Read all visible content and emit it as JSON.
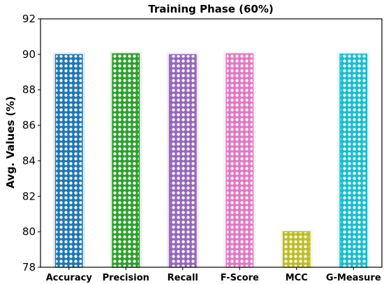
{
  "chart_data": {
    "type": "bar",
    "title": "Training Phase (60%)",
    "xlabel": "",
    "ylabel": "Avg. Values (%)",
    "ylim": [
      78,
      92
    ],
    "yticks": [
      78,
      80,
      82,
      84,
      86,
      88,
      90,
      92
    ],
    "grid": false,
    "categories": [
      "Accuracy",
      "Precision",
      "Recall",
      "F-Score",
      "MCC",
      "G-Measure"
    ],
    "values": [
      89.98,
      90.03,
      89.98,
      90.03,
      80.0,
      90.01
    ],
    "colors": [
      "#1f77b4",
      "#2ca02c",
      "#9467bd",
      "#e377c2",
      "#bcbd22",
      "#17becf"
    ]
  }
}
